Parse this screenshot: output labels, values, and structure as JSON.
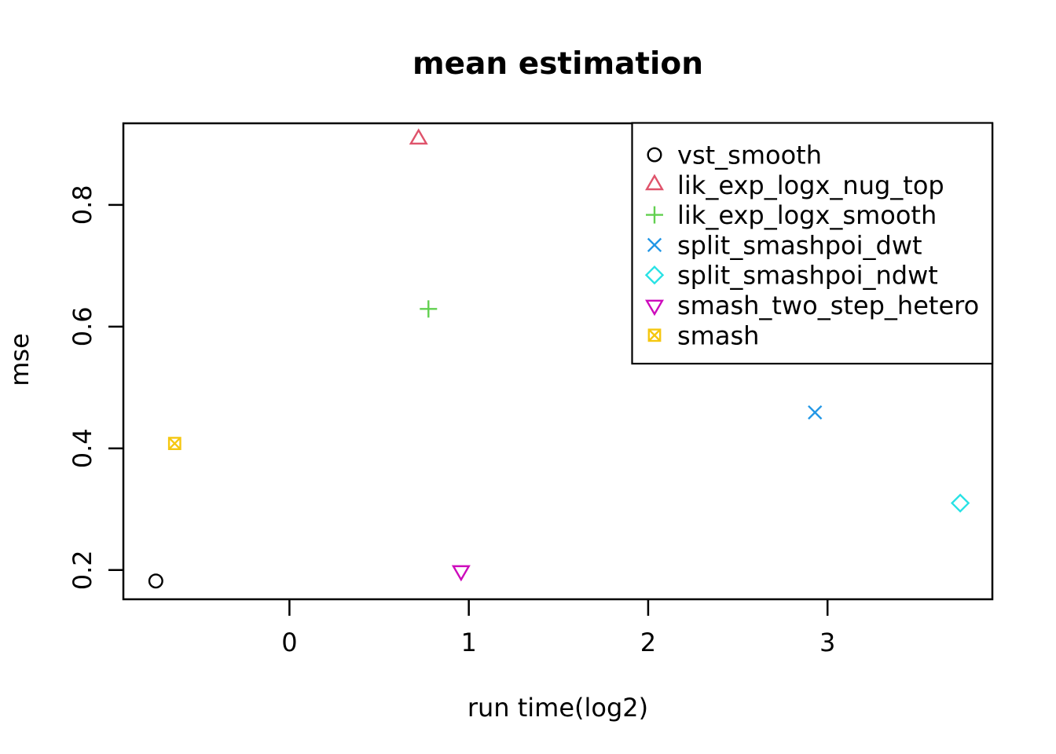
{
  "chart_data": {
    "type": "scatter",
    "title": "mean estimation",
    "xlabel": "run time(log2)",
    "ylabel": "mse",
    "xlim": [
      -0.926,
      3.919
    ],
    "ylim": [
      0.152,
      0.934
    ],
    "xticks": [
      0,
      1,
      2,
      3
    ],
    "yticks": [
      0.2,
      0.4,
      0.6,
      0.8
    ],
    "grid": false,
    "legend_position": "topright",
    "series": [
      {
        "name": "vst_smooth",
        "symbol": "circle",
        "color": "#000000",
        "points": [
          [
            -0.745,
            0.182
          ]
        ]
      },
      {
        "name": "lik_exp_logx_nug_top",
        "symbol": "triangle-up",
        "color": "#DF536B",
        "points": [
          [
            0.72,
            0.908
          ]
        ]
      },
      {
        "name": "lik_exp_logx_smooth",
        "symbol": "plus",
        "color": "#61D04F",
        "points": [
          [
            0.775,
            0.629
          ]
        ]
      },
      {
        "name": "split_smashpoi_dwt",
        "symbol": "x",
        "color": "#2297E6",
        "points": [
          [
            2.93,
            0.459
          ]
        ]
      },
      {
        "name": "split_smashpoi_ndwt",
        "symbol": "diamond",
        "color": "#28E2E5",
        "points": [
          [
            3.74,
            0.31
          ]
        ]
      },
      {
        "name": "smash_two_step_hetero",
        "symbol": "triangle-down",
        "color": "#CD0BBC",
        "points": [
          [
            0.957,
            0.199
          ]
        ]
      },
      {
        "name": "smash",
        "symbol": "square-x",
        "color": "#F5C710",
        "points": [
          [
            -0.64,
            0.408
          ]
        ]
      }
    ],
    "axis_color": "#000000",
    "background_color": "#ffffff"
  }
}
